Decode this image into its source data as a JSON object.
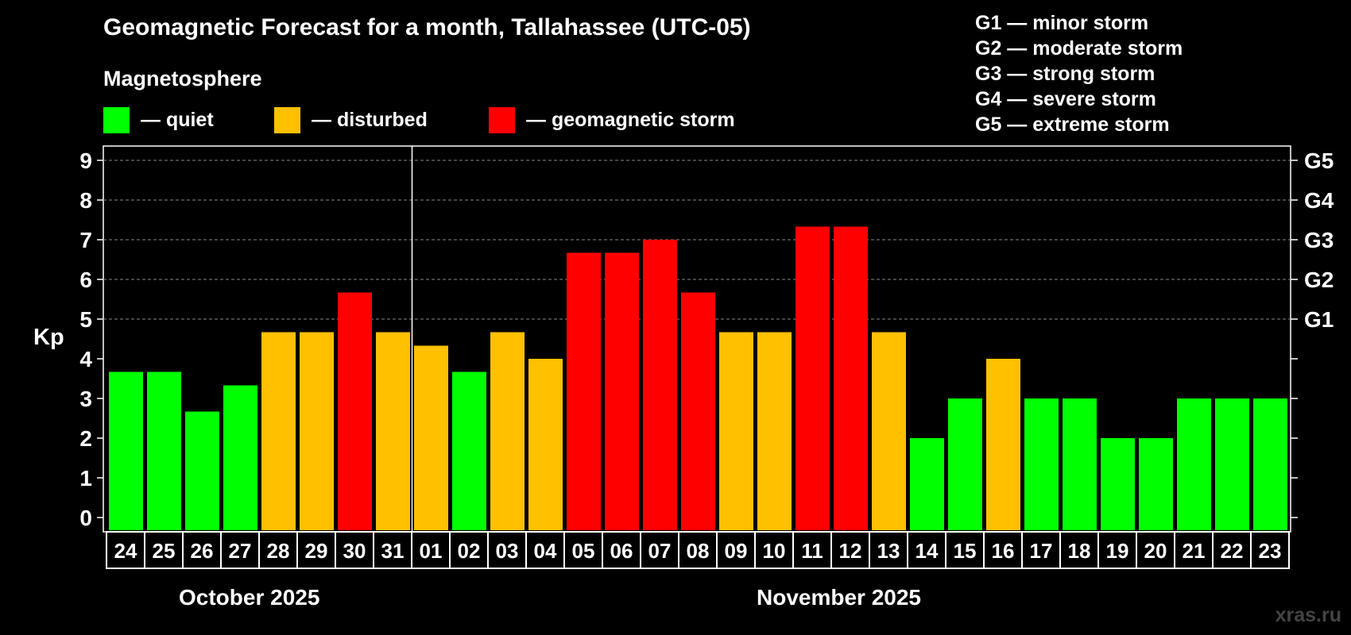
{
  "title": "Geomagnetic Forecast for a month, Tallahassee (UTC-05)",
  "legend": {
    "heading": "Magnetosphere",
    "items": [
      {
        "label": "— quiet",
        "color": "#00ff00"
      },
      {
        "label": "— disturbed",
        "color": "#ffc000"
      },
      {
        "label": "— geomagnetic storm",
        "color": "#ff0000"
      }
    ]
  },
  "storm_scale": [
    "G1 — minor storm",
    "G2 — moderate storm",
    "G3 — strong storm",
    "G4 — severe storm",
    "G5 — extreme storm"
  ],
  "months": [
    "October 2025",
    "November 2025"
  ],
  "watermark": "xras.ru",
  "chart_data": {
    "type": "bar",
    "ylabel": "Kp",
    "ylim": [
      0,
      9
    ],
    "yticks": [
      "0",
      "1",
      "2",
      "3",
      "4",
      "5",
      "6",
      "7",
      "8",
      "9"
    ],
    "right_axis_labels": [
      {
        "kp": 5,
        "label": "G1"
      },
      {
        "kp": 6,
        "label": "G2"
      },
      {
        "kp": 7,
        "label": "G3"
      },
      {
        "kp": 8,
        "label": "G4"
      },
      {
        "kp": 9,
        "label": "G5"
      }
    ],
    "grid": "dashed horizontal at Kp 5-9",
    "categories": [
      "24",
      "25",
      "26",
      "27",
      "28",
      "29",
      "30",
      "31",
      "01",
      "02",
      "03",
      "04",
      "05",
      "06",
      "07",
      "08",
      "09",
      "10",
      "11",
      "12",
      "13",
      "14",
      "15",
      "16",
      "17",
      "18",
      "19",
      "20",
      "21",
      "22",
      "23"
    ],
    "values": [
      3.67,
      3.67,
      2.67,
      3.33,
      4.67,
      4.67,
      5.67,
      4.67,
      4.33,
      3.67,
      4.67,
      4.0,
      6.67,
      6.67,
      7.0,
      5.67,
      4.67,
      4.67,
      7.33,
      7.33,
      4.67,
      2.0,
      3.0,
      4.0,
      3.0,
      3.0,
      2.0,
      2.0,
      3.0,
      3.0,
      3.0
    ],
    "status": [
      "quiet",
      "quiet",
      "quiet",
      "quiet",
      "disturbed",
      "disturbed",
      "storm",
      "disturbed",
      "disturbed",
      "quiet",
      "disturbed",
      "disturbed",
      "storm",
      "storm",
      "storm",
      "storm",
      "disturbed",
      "disturbed",
      "storm",
      "storm",
      "disturbed",
      "quiet",
      "quiet",
      "disturbed",
      "quiet",
      "quiet",
      "quiet",
      "quiet",
      "quiet",
      "quiet",
      "quiet"
    ],
    "colors": {
      "quiet": "#00ff00",
      "disturbed": "#ffc000",
      "storm": "#ff0000"
    },
    "month_boundary_after_index": 7
  }
}
